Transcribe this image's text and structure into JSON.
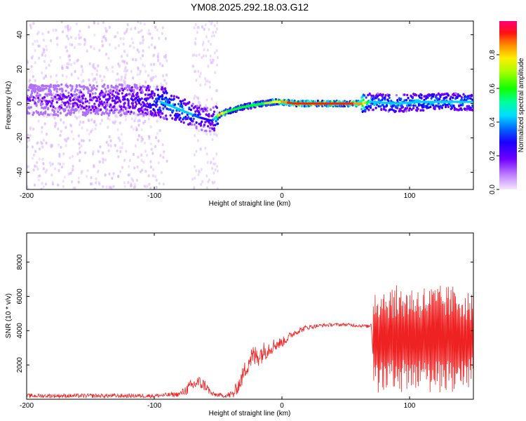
{
  "title": "YM08.2025.292.18.03.G12",
  "colors": {
    "snr_line": "#ee2222",
    "axis": "#000000",
    "colormap": [
      "#e6b8ff",
      "#b070ff",
      "#7000ff",
      "#2200ff",
      "#0055ff",
      "#00ccff",
      "#00ffcc",
      "#00ff22",
      "#aaff00",
      "#ffff00",
      "#ff9900",
      "#ff2200",
      "#ff0066"
    ]
  },
  "chart_data": [
    {
      "type": "heatmap",
      "title": "",
      "xlabel": "Height of straight line (km)",
      "ylabel": "Frequency (Hz)",
      "xlim": [
        -200,
        150
      ],
      "ylim": [
        -50,
        48
      ],
      "xticks": [
        -200,
        -100,
        0,
        100
      ],
      "yticks": [
        -40,
        -20,
        0,
        20,
        40
      ],
      "colorbar": {
        "label": "Normalized spectral amplitude",
        "range": [
          0,
          1
        ],
        "ticks": [
          0.0,
          0.2,
          0.4,
          0.6,
          0.8
        ],
        "tick_labels": [
          "0.0",
          "0.2",
          "0.4",
          "0.6",
          "0.8"
        ]
      },
      "ridge": {
        "x": [
          -200,
          -150,
          -110,
          -95,
          -85,
          -75,
          -65,
          -55,
          -48,
          -40,
          -30,
          -15,
          -5,
          0,
          10,
          30,
          50,
          62,
          70,
          90,
          110,
          130,
          150
        ],
        "frequency_hz": [
          2,
          2,
          2,
          1,
          -2,
          -5,
          -8,
          -10,
          -6,
          -4,
          -2,
          0,
          1,
          1,
          0,
          0,
          0,
          0,
          1,
          0,
          1,
          1,
          1
        ],
        "peak_amplitude": [
          0.15,
          0.2,
          0.25,
          0.4,
          0.45,
          0.45,
          0.3,
          0.25,
          0.8,
          0.55,
          0.55,
          0.6,
          0.75,
          0.8,
          0.95,
          0.9,
          0.9,
          0.85,
          0.45,
          0.45,
          0.45,
          0.45,
          0.45
        ]
      }
    },
    {
      "type": "line",
      "title": "",
      "xlabel": "Height of straight line (km)",
      "ylabel": "SNR (10 * v/v)",
      "xlim": [
        -200,
        150
      ],
      "ylim": [
        0,
        9700
      ],
      "xticks": [
        -200,
        -100,
        0,
        100
      ],
      "yticks": [
        2000,
        4000,
        6000,
        8000
      ],
      "series": [
        {
          "name": "SNR",
          "envelope": {
            "x": [
              -200,
              -150,
              -100,
              -80,
              -72,
              -66,
              -60,
              -55,
              -45,
              -38,
              -32,
              -28,
              -25,
              -20,
              -10,
              -5,
              0,
              10,
              20,
              30,
              40,
              50,
              60,
              68,
              70,
              72,
              80,
              90,
              100,
              110,
              120,
              130,
              140,
              150
            ],
            "mean": [
              200,
              200,
              200,
              300,
              700,
              1000,
              800,
              300,
              200,
              300,
              1100,
              1900,
              2400,
              2500,
              3000,
              3200,
              3300,
              3900,
              4200,
              4300,
              4350,
              4350,
              4300,
              4250,
              4400,
              3500,
              3500,
              3500,
              3500,
              3500,
              3500,
              3500,
              3500,
              3500
            ],
            "noise": [
              120,
              120,
              120,
              150,
              400,
              400,
              350,
              150,
              100,
              300,
              500,
              600,
              700,
              700,
              500,
              400,
              300,
              200,
              150,
              100,
              100,
              100,
              100,
              100,
              150,
              3000,
              3000,
              3000,
              3000,
              3000,
              3000,
              3000,
              3000,
              2500
            ]
          }
        }
      ]
    }
  ]
}
